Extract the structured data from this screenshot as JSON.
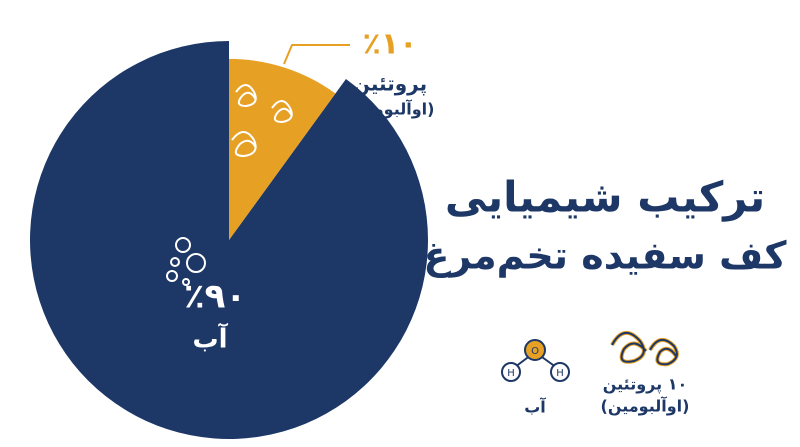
{
  "chart_data": {
    "type": "pie",
    "title": "ترکیب شیمیایی",
    "subtitle": "کف سفیده تخم‌مرغ",
    "categories": [
      "آب",
      "پروتئین"
    ],
    "category_notes": [
      null,
      "(اوآلبومین)"
    ],
    "values": [
      90,
      10
    ],
    "value_labels": [
      "٪۹۰",
      "٪۱۰"
    ],
    "colors": [
      "#1d3766",
      "#e6a024"
    ],
    "legend": [
      {
        "label": "آب"
      },
      {
        "label": "۱۰ پروتئین",
        "note": "(اوآلبومین)"
      }
    ]
  }
}
